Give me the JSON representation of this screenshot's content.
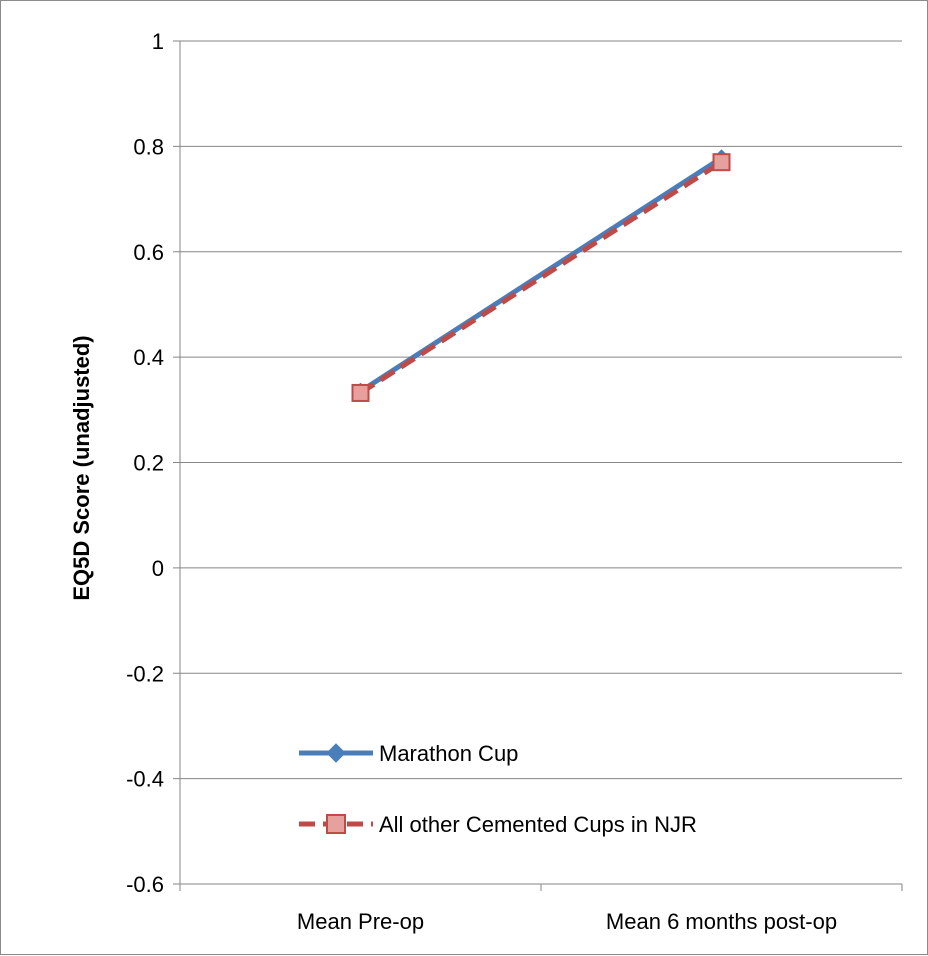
{
  "chart_data": {
    "type": "line",
    "title": "",
    "xlabel": "",
    "ylabel": "EQ5D Score (unadjusted)",
    "categories": [
      "Mean Pre-op",
      "Mean 6 months post-op"
    ],
    "ylim": [
      -0.6,
      1
    ],
    "yticks": [
      -0.6,
      -0.4,
      -0.2,
      0,
      0.2,
      0.4,
      0.6,
      0.8,
      1
    ],
    "ytick_labels": [
      "-0.6",
      "-0.4",
      "-0.2",
      "0",
      "0.2",
      "0.4",
      "0.6",
      "0.8",
      "1"
    ],
    "grid": true,
    "legend_position": "bottom-left inside plot",
    "series": [
      {
        "name": "Marathon Cup",
        "values": [
          0.335,
          0.778
        ],
        "color": "#4a7ebb",
        "line_style": "solid",
        "marker": "diamond"
      },
      {
        "name": "All other Cemented Cups in NJR",
        "values": [
          0.332,
          0.77
        ],
        "color": "#be4b48",
        "marker_fill": "#e6a19f",
        "line_style": "dashed",
        "marker": "square"
      }
    ]
  }
}
